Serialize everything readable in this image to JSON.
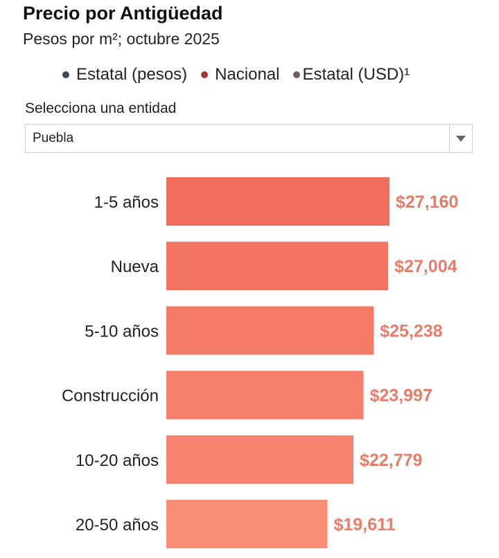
{
  "header": {
    "title": "Precio por Antigüedad",
    "subtitle": "Pesos por m²; octubre 2025"
  },
  "legend": {
    "items": [
      {
        "label": "Estatal (pesos)",
        "color": "#3d4a55"
      },
      {
        "label": "Nacional",
        "color": "#a3372f"
      },
      {
        "label": "Estatal (USD)¹",
        "color": "#6b5f5a"
      }
    ]
  },
  "selector": {
    "label": "Selecciona una entidad",
    "value": "Puebla"
  },
  "chart_data": {
    "type": "bar",
    "orientation": "horizontal",
    "title": "Precio por Antigüedad",
    "subtitle": "Pesos por m²; octubre 2025",
    "categories": [
      "1-5 años",
      "Nueva",
      "5-10 años",
      "Construcción",
      "10-20 años",
      "20-50 años"
    ],
    "values": [
      27160,
      27004,
      25238,
      23997,
      22779,
      19611
    ],
    "value_labels": [
      "$27,160",
      "$27,004",
      "$25,238",
      "$23,997",
      "$22,779",
      "$19,611"
    ],
    "colors": [
      "#f26f5e",
      "#f37363",
      "#f47a68",
      "#f57f6b",
      "#f6836f",
      "#f88c74"
    ],
    "label_color": "#ea7b69",
    "xlim": [
      0,
      27160
    ]
  }
}
